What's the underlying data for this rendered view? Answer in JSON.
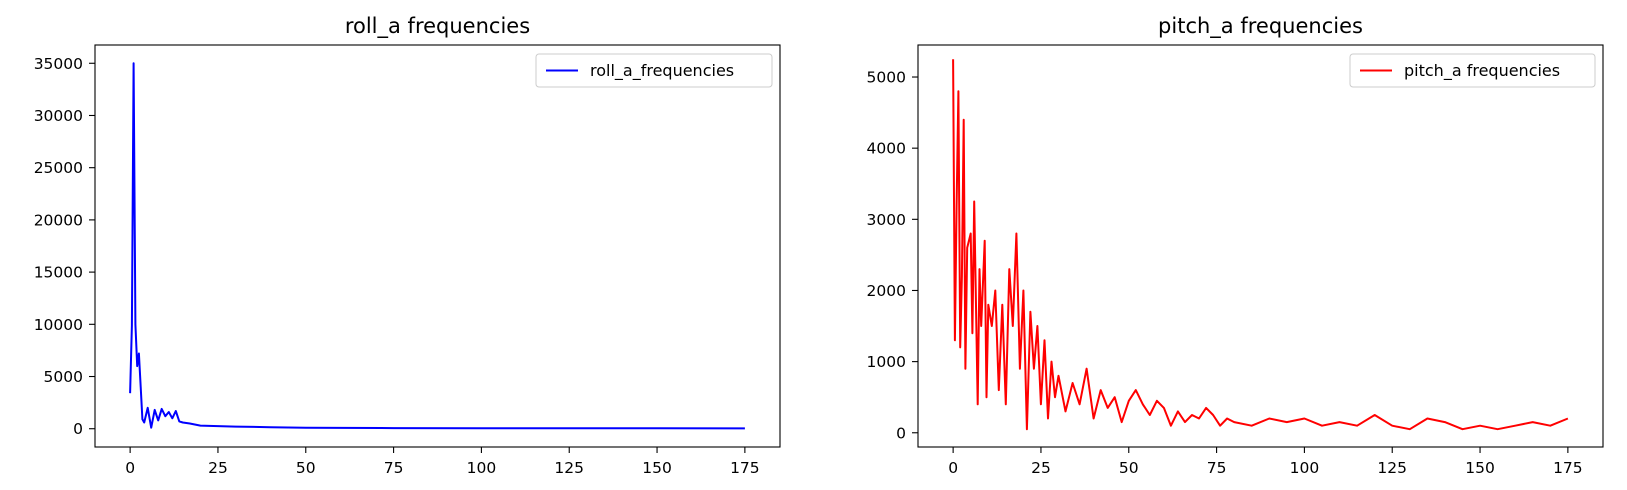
{
  "figure": {
    "name": "frequency-plots"
  },
  "chart_data": [
    {
      "type": "line",
      "title": "roll_a frequencies",
      "xlabel": "",
      "ylabel": "",
      "xlim": [
        -10,
        185
      ],
      "ylim": [
        -1750,
        36750
      ],
      "xticks": [
        0,
        25,
        50,
        75,
        100,
        125,
        150,
        175
      ],
      "yticks": [
        0,
        5000,
        10000,
        15000,
        20000,
        25000,
        30000,
        35000
      ],
      "grid": false,
      "legend_position": "upper right",
      "series": [
        {
          "name": "roll_a_frequencies",
          "color": "#0000ff",
          "x": [
            0,
            0.5,
            1,
            1.5,
            2,
            2.5,
            3,
            3.5,
            4,
            5,
            6,
            7,
            8,
            9,
            10,
            11,
            12,
            13,
            14,
            15,
            17,
            20,
            25,
            30,
            40,
            50,
            60,
            75,
            100,
            125,
            150,
            175
          ],
          "y": [
            3400,
            9900,
            35000,
            10000,
            6000,
            7200,
            4000,
            900,
            600,
            2000,
            100,
            1800,
            800,
            1900,
            1200,
            1600,
            1000,
            1700,
            700,
            600,
            500,
            300,
            250,
            200,
            150,
            100,
            80,
            60,
            50,
            40,
            40,
            30
          ]
        }
      ]
    },
    {
      "type": "line",
      "title": "pitch_a frequencies",
      "xlabel": "",
      "ylabel": "",
      "xlim": [
        -10,
        185
      ],
      "ylim": [
        -200,
        5450
      ],
      "xticks": [
        0,
        25,
        50,
        75,
        100,
        125,
        150,
        175
      ],
      "yticks": [
        0,
        1000,
        2000,
        3000,
        4000,
        5000
      ],
      "grid": false,
      "legend_position": "upper right",
      "series": [
        {
          "name": "pitch_a frequencies",
          "color": "#ff0000",
          "x": [
            0,
            0.5,
            1,
            1.5,
            2,
            2.5,
            3,
            3.5,
            4,
            5,
            5.5,
            6,
            7,
            7.5,
            8,
            9,
            9.5,
            10,
            11,
            12,
            13,
            14,
            15,
            16,
            17,
            18,
            19,
            20,
            21,
            22,
            23,
            24,
            25,
            26,
            27,
            28,
            29,
            30,
            32,
            34,
            36,
            38,
            40,
            42,
            44,
            46,
            48,
            50,
            52,
            54,
            56,
            58,
            60,
            62,
            64,
            66,
            68,
            70,
            72,
            74,
            76,
            78,
            80,
            85,
            90,
            95,
            100,
            105,
            110,
            115,
            120,
            125,
            130,
            135,
            140,
            145,
            150,
            155,
            160,
            165,
            170,
            175
          ],
          "y": [
            5250,
            1300,
            3200,
            4800,
            1200,
            2200,
            4400,
            900,
            2600,
            2800,
            1400,
            3250,
            400,
            2300,
            1500,
            2700,
            500,
            1800,
            1500,
            2000,
            600,
            1800,
            400,
            2300,
            1500,
            2800,
            900,
            2000,
            50,
            1700,
            900,
            1500,
            400,
            1300,
            200,
            1000,
            500,
            800,
            300,
            700,
            400,
            900,
            200,
            600,
            350,
            500,
            150,
            450,
            600,
            400,
            250,
            450,
            350,
            100,
            300,
            150,
            250,
            200,
            350,
            250,
            100,
            200,
            150,
            100,
            200,
            150,
            200,
            100,
            150,
            100,
            250,
            100,
            50,
            200,
            150,
            50,
            100,
            50,
            100,
            150,
            100,
            200
          ]
        }
      ]
    }
  ]
}
